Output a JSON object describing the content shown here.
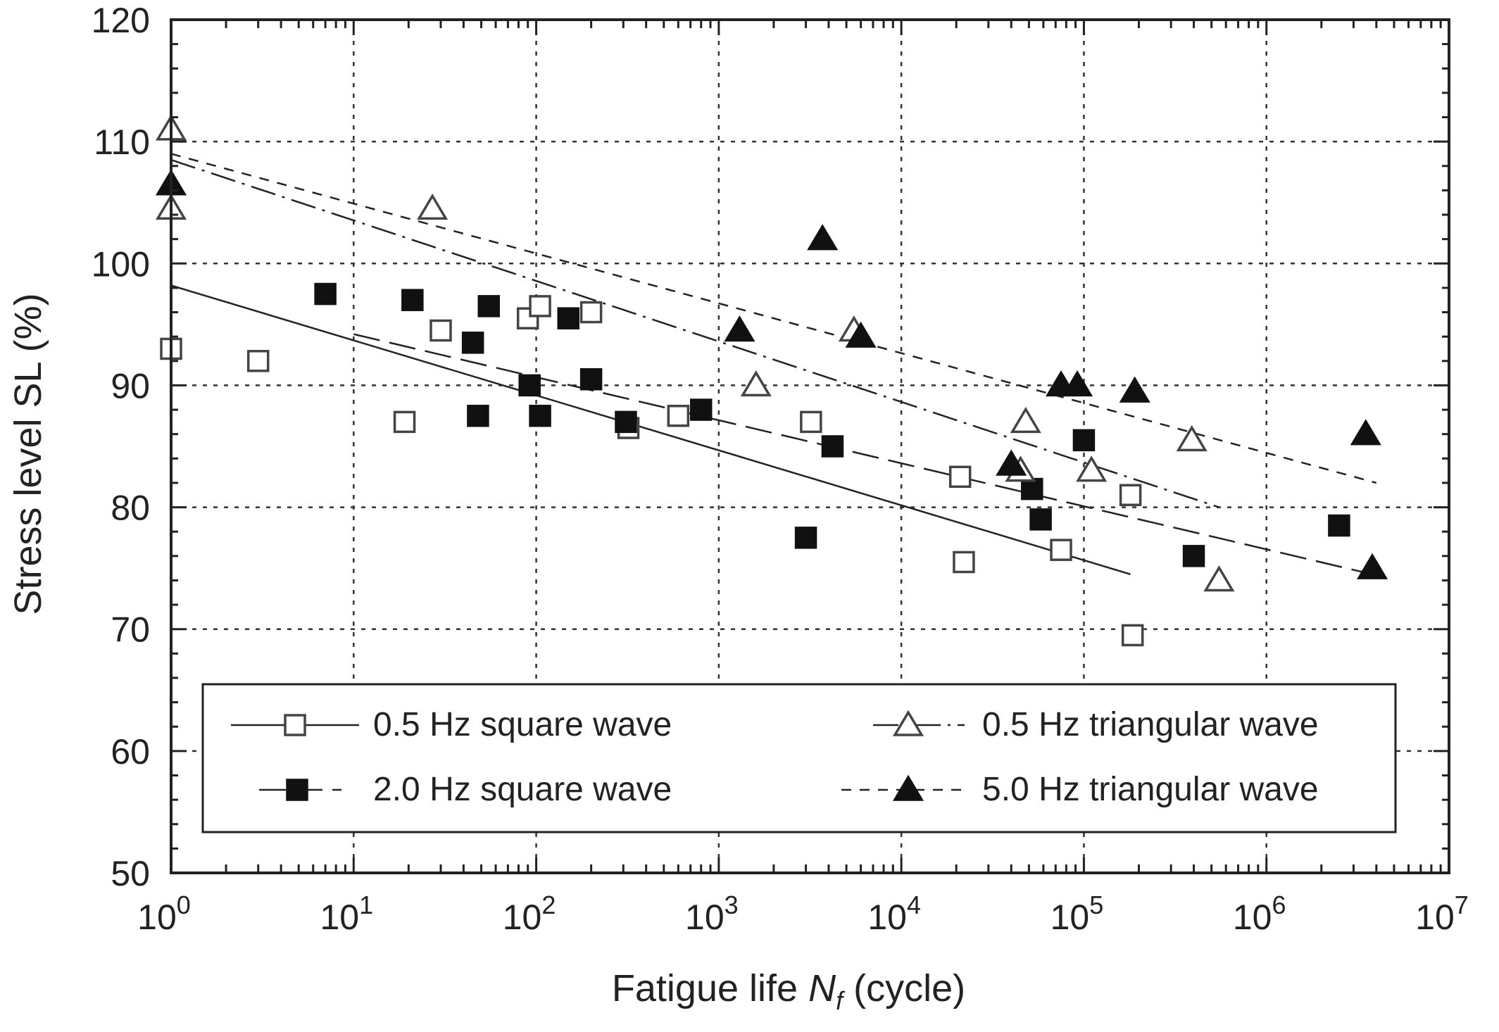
{
  "chart_data": {
    "type": "scatter",
    "title": "",
    "xlabel": "Fatigue life",
    "xlabel_symbol": "N",
    "xlabel_subscript": "f",
    "xlabel_unit": "(cycle)",
    "ylabel": "Stress level SL (%)",
    "xscale": "log",
    "xlim": [
      1,
      10000000
    ],
    "ylim": [
      50,
      120
    ],
    "grid": true,
    "x_ticks": [
      {
        "base": "10",
        "exp": "0"
      },
      {
        "base": "10",
        "exp": "1"
      },
      {
        "base": "10",
        "exp": "2"
      },
      {
        "base": "10",
        "exp": "3"
      },
      {
        "base": "10",
        "exp": "4"
      },
      {
        "base": "10",
        "exp": "5"
      },
      {
        "base": "10",
        "exp": "6"
      },
      {
        "base": "10",
        "exp": "7"
      }
    ],
    "y_ticks": [
      "50",
      "60",
      "70",
      "80",
      "90",
      "100",
      "110",
      "120"
    ],
    "legend": {
      "placement": "lower-center",
      "entries": [
        {
          "label": "0.5 Hz square wave",
          "marker": "open-square",
          "line": "solid"
        },
        {
          "label": "2.0 Hz square wave",
          "marker": "filled-square",
          "line": "long-dash"
        },
        {
          "label": "0.5 Hz triangular wave",
          "marker": "open-triangle",
          "line": "dash-dot"
        },
        {
          "label": "5.0 Hz triangular wave",
          "marker": "filled-triangle",
          "line": "short-dash"
        }
      ]
    },
    "series": [
      {
        "name": "0.5 Hz square wave",
        "marker": "open-square",
        "line": "solid",
        "fit_line": [
          [
            1,
            98.2
          ],
          [
            180000,
            74.5
          ]
        ],
        "points": [
          [
            1,
            93
          ],
          [
            3,
            92
          ],
          [
            19,
            87
          ],
          [
            30,
            94.5
          ],
          [
            90,
            95.5
          ],
          [
            105,
            96.5
          ],
          [
            200,
            96
          ],
          [
            320,
            86.5
          ],
          [
            600,
            87.5
          ],
          [
            3200,
            87
          ],
          [
            21000,
            82.5
          ],
          [
            22000,
            75.5
          ],
          [
            75000,
            76.5
          ],
          [
            180000,
            81
          ],
          [
            185000,
            69.5
          ]
        ]
      },
      {
        "name": "2.0 Hz square wave",
        "marker": "filled-square",
        "line": "long-dash",
        "fit_line": [
          [
            10,
            94.2
          ],
          [
            3800000,
            74.5
          ]
        ],
        "points": [
          [
            7,
            97.5
          ],
          [
            21,
            97
          ],
          [
            45,
            93.5
          ],
          [
            48,
            87.5
          ],
          [
            55,
            96.5
          ],
          [
            92,
            90
          ],
          [
            105,
            87.5
          ],
          [
            150,
            95.5
          ],
          [
            200,
            90.5
          ],
          [
            310,
            87
          ],
          [
            800,
            88
          ],
          [
            3000,
            77.5
          ],
          [
            4200,
            85
          ],
          [
            52000,
            81.5
          ],
          [
            58000,
            79
          ],
          [
            100000,
            85.5
          ],
          [
            400000,
            76
          ],
          [
            2500000,
            78.5
          ]
        ]
      },
      {
        "name": "0.5 Hz triangular wave",
        "marker": "open-triangle",
        "line": "dash-dot",
        "fit_line": [
          [
            1,
            108.5
          ],
          [
            550000,
            80
          ]
        ],
        "points": [
          [
            1,
            111
          ],
          [
            1,
            104.5
          ],
          [
            27,
            104.5
          ],
          [
            1600,
            90
          ],
          [
            5500,
            94.5
          ],
          [
            45000,
            83
          ],
          [
            48000,
            87
          ],
          [
            110000,
            83
          ],
          [
            390000,
            85.5
          ],
          [
            550000,
            74
          ]
        ]
      },
      {
        "name": "5.0 Hz triangular wave",
        "marker": "filled-triangle",
        "line": "short-dash",
        "fit_line": [
          [
            1,
            109
          ],
          [
            4000000,
            82
          ]
        ],
        "points": [
          [
            1,
            106.5
          ],
          [
            1300,
            94.5
          ],
          [
            3700,
            102
          ],
          [
            6000,
            94
          ],
          [
            40000,
            83.5
          ],
          [
            75000,
            90
          ],
          [
            92000,
            90
          ],
          [
            190000,
            89.5
          ],
          [
            3500000,
            86
          ],
          [
            3800000,
            75
          ]
        ]
      }
    ]
  }
}
